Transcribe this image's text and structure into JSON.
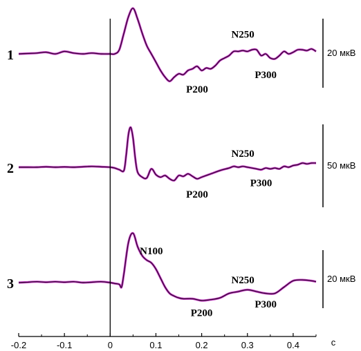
{
  "chart_data": {
    "type": "line",
    "xlabel": "c",
    "xlim": [
      -0.2,
      0.45
    ],
    "x_ticks": [
      {
        "value": -0.2,
        "label": "-0.2"
      },
      {
        "value": -0.1,
        "label": "-0.1"
      },
      {
        "value": 0,
        "label": "0"
      },
      {
        "value": 0.1,
        "label": "0.1"
      },
      {
        "value": 0.2,
        "label": "0.2"
      },
      {
        "value": 0.3,
        "label": "0.3"
      },
      {
        "value": 0.4,
        "label": "0.4"
      }
    ],
    "stimulus_onset": 0,
    "colors": {
      "trace_main": "#3a0a3a",
      "trace_halo": "#cc44cc",
      "axis": "#000000"
    },
    "series": [
      {
        "name": "1",
        "scale_bar": "20 мкВ",
        "x": [
          -0.2,
          -0.18,
          -0.16,
          -0.14,
          -0.12,
          -0.1,
          -0.08,
          -0.06,
          -0.04,
          -0.02,
          0,
          0.01,
          0.02,
          0.03,
          0.04,
          0.05,
          0.06,
          0.07,
          0.08,
          0.09,
          0.1,
          0.11,
          0.12,
          0.13,
          0.14,
          0.15,
          0.16,
          0.17,
          0.18,
          0.19,
          0.2,
          0.21,
          0.22,
          0.23,
          0.24,
          0.25,
          0.26,
          0.27,
          0.28,
          0.29,
          0.3,
          0.31,
          0.32,
          0.33,
          0.34,
          0.35,
          0.36,
          0.37,
          0.38,
          0.39,
          0.4,
          0.41,
          0.42,
          0.43,
          0.44,
          0.45
        ],
        "y": [
          0,
          0.5,
          1,
          2,
          0,
          3,
          1,
          0,
          1,
          0,
          0,
          0,
          5,
          25,
          45,
          55,
          42,
          25,
          10,
          0,
          -10,
          -20,
          -28,
          -33,
          -28,
          -24,
          -25,
          -20,
          -18,
          -15,
          -20,
          -17,
          -18,
          -14,
          -8,
          -5,
          -2,
          3,
          3,
          4,
          3,
          5,
          5,
          -2,
          0,
          -5,
          -6,
          -2,
          3,
          0,
          2,
          5,
          5,
          4,
          6,
          3
        ],
        "peaks": [
          {
            "label": "P200",
            "x": 0.19,
            "y": -30
          },
          {
            "label": "N250",
            "x": 0.29,
            "y": 13
          },
          {
            "label": "P300",
            "x": 0.34,
            "y": -14
          }
        ]
      },
      {
        "name": "2",
        "scale_bar": "50 мкВ",
        "x": [
          -0.2,
          -0.18,
          -0.16,
          -0.14,
          -0.12,
          -0.1,
          -0.08,
          -0.06,
          -0.04,
          -0.02,
          0,
          0.01,
          0.02,
          0.03,
          0.035,
          0.04,
          0.045,
          0.05,
          0.055,
          0.06,
          0.07,
          0.08,
          0.09,
          0.1,
          0.11,
          0.12,
          0.13,
          0.14,
          0.15,
          0.16,
          0.17,
          0.18,
          0.19,
          0.2,
          0.22,
          0.24,
          0.26,
          0.27,
          0.28,
          0.29,
          0.3,
          0.31,
          0.32,
          0.33,
          0.34,
          0.35,
          0.36,
          0.37,
          0.38,
          0.39,
          0.4,
          0.41,
          0.42,
          0.43,
          0.44,
          0.45
        ],
        "y": [
          0,
          0,
          0,
          0.5,
          0,
          0.3,
          0,
          0.5,
          1,
          0.5,
          0,
          -1,
          -3,
          -4,
          15,
          40,
          48,
          35,
          10,
          -6,
          -12,
          -13,
          -2,
          -9,
          -12,
          -10,
          -14,
          -16,
          -10,
          -11,
          -8,
          -11,
          -14,
          -12,
          -8,
          -4,
          -1,
          1,
          0,
          1,
          0,
          -1,
          -2,
          -3,
          -1,
          -2,
          -1,
          -2,
          1,
          0,
          2,
          3,
          5,
          4,
          5,
          5
        ],
        "peaks": [
          {
            "label": "P200",
            "x": 0.19,
            "y": -20
          },
          {
            "label": "N250",
            "x": 0.29,
            "y": 6
          },
          {
            "label": "P300",
            "x": 0.33,
            "y": -8
          }
        ]
      },
      {
        "name": "3",
        "scale_bar": "20 мкВ",
        "x": [
          -0.2,
          -0.18,
          -0.16,
          -0.14,
          -0.12,
          -0.1,
          -0.08,
          -0.06,
          -0.04,
          -0.02,
          0,
          0.01,
          0.02,
          0.025,
          0.03,
          0.04,
          0.05,
          0.06,
          0.07,
          0.08,
          0.09,
          0.1,
          0.11,
          0.12,
          0.13,
          0.14,
          0.15,
          0.16,
          0.18,
          0.2,
          0.22,
          0.24,
          0.26,
          0.28,
          0.3,
          0.32,
          0.34,
          0.36,
          0.38,
          0.4,
          0.42,
          0.44,
          0.45
        ],
        "y": [
          0,
          0.5,
          1,
          0.5,
          1,
          0.5,
          1,
          0,
          0.5,
          1,
          0,
          -1,
          -2,
          -5,
          10,
          45,
          55,
          40,
          30,
          25,
          22,
          15,
          5,
          -5,
          -12,
          -15,
          -17,
          -18,
          -18,
          -20,
          -19,
          -17,
          -12,
          -10,
          -8,
          -10,
          -12,
          -12,
          -5,
          2,
          3,
          2,
          1
        ],
        "peaks": [
          {
            "label": "N100",
            "x": 0.09,
            "y": 24
          },
          {
            "label": "N250",
            "x": 0.29,
            "y": -7
          },
          {
            "label": "P200",
            "x": 0.2,
            "y": -22
          },
          {
            "label": "P300",
            "x": 0.34,
            "y": -14
          }
        ]
      }
    ]
  }
}
